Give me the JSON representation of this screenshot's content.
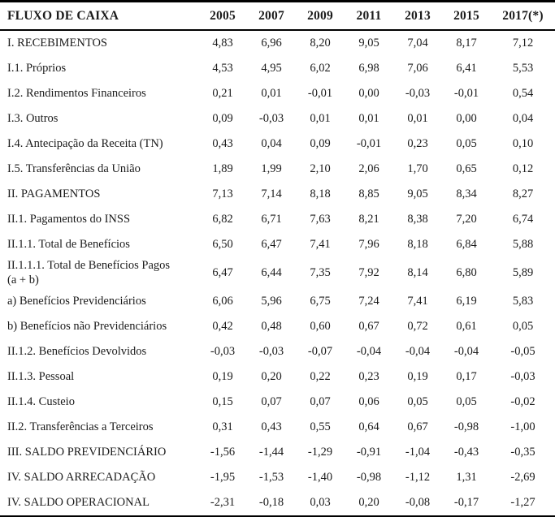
{
  "table": {
    "title_column_header": "FLUXO DE CAIXA",
    "year_headers": [
      "2005",
      "2007",
      "2009",
      "2011",
      "2013",
      "2015",
      "2017(*)"
    ],
    "rows": [
      {
        "label": "I. RECEBIMENTOS",
        "values": [
          "4,83",
          "6,96",
          "8,20",
          "9,05",
          "7,04",
          "8,17",
          "7,12"
        ]
      },
      {
        "label": "I.1. Próprios",
        "values": [
          "4,53",
          "4,95",
          "6,02",
          "6,98",
          "7,06",
          "6,41",
          "5,53"
        ]
      },
      {
        "label": "I.2. Rendimentos Financeiros",
        "values": [
          "0,21",
          "0,01",
          "-0,01",
          "0,00",
          "-0,03",
          "-0,01",
          "0,54"
        ]
      },
      {
        "label": "I.3. Outros",
        "values": [
          "0,09",
          "-0,03",
          "0,01",
          "0,01",
          "0,01",
          "0,00",
          "0,04"
        ]
      },
      {
        "label": "I.4. Antecipação da Receita (TN)",
        "values": [
          "0,43",
          "0,04",
          "0,09",
          "-0,01",
          "0,23",
          "0,05",
          "0,10"
        ]
      },
      {
        "label": "I.5. Transferências da União",
        "values": [
          "1,89",
          "1,99",
          "2,10",
          "2,06",
          "1,70",
          "0,65",
          "0,12"
        ]
      },
      {
        "label": "II. PAGAMENTOS",
        "values": [
          "7,13",
          "7,14",
          "8,18",
          "8,85",
          "9,05",
          "8,34",
          "8,27"
        ]
      },
      {
        "label": "II.1. Pagamentos do INSS",
        "values": [
          "6,82",
          "6,71",
          "7,63",
          "8,21",
          "8,38",
          "7,20",
          "6,74"
        ]
      },
      {
        "label": "II.1.1. Total de Benefícios",
        "values": [
          "6,50",
          "6,47",
          "7,41",
          "7,96",
          "8,18",
          "6,84",
          "5,88"
        ]
      },
      {
        "label": "II.1.1.1. Total de Benefícios Pagos\n(a + b)",
        "values": [
          "6,47",
          "6,44",
          "7,35",
          "7,92",
          "8,14",
          "6,80",
          "5,89"
        ]
      },
      {
        "label": "a) Benefícios Previdenciários",
        "values": [
          "6,06",
          "5,96",
          "6,75",
          "7,24",
          "7,41",
          "6,19",
          "5,83"
        ]
      },
      {
        "label": "b) Benefícios não Previdenciários",
        "values": [
          "0,42",
          "0,48",
          "0,60",
          "0,67",
          "0,72",
          "0,61",
          "0,05"
        ]
      },
      {
        "label": "II.1.2. Benefícios Devolvidos",
        "values": [
          "-0,03",
          "-0,03",
          "-0,07",
          "-0,04",
          "-0,04",
          "-0,04",
          "-0,05"
        ]
      },
      {
        "label": "II.1.3. Pessoal",
        "values": [
          "0,19",
          "0,20",
          "0,22",
          "0,23",
          "0,19",
          "0,17",
          "-0,03"
        ]
      },
      {
        "label": "II.1.4. Custeio",
        "values": [
          "0,15",
          "0,07",
          "0,07",
          "0,06",
          "0,05",
          "0,05",
          "-0,02"
        ]
      },
      {
        "label": "II.2. Transferências a Terceiros",
        "values": [
          "0,31",
          "0,43",
          "0,55",
          "0,64",
          "0,67",
          "-0,98",
          "-1,00"
        ]
      },
      {
        "label": "III. SALDO PREVIDENCIÁRIO",
        "values": [
          "-1,56",
          "-1,44",
          "-1,29",
          "-0,91",
          "-1,04",
          "-0,43",
          "-0,35"
        ]
      },
      {
        "label": "IV. SALDO ARRECADAÇÃO",
        "values": [
          "-1,95",
          "-1,53",
          "-1,40",
          "-0,98",
          "-1,12",
          "1,31",
          "-2,69"
        ]
      },
      {
        "label": "IV. SALDO OPERACIONAL",
        "values": [
          "-2,31",
          "-0,18",
          "0,03",
          "0,20",
          "-0,08",
          "-0,17",
          "-1,27"
        ]
      }
    ],
    "colors": {
      "text": "#1b1b1b",
      "border": "#000000",
      "background": "#ffffff"
    }
  },
  "chart_data": {
    "type": "table",
    "title": "FLUXO DE CAIXA",
    "categories": [
      2005,
      2007,
      2009,
      2011,
      2013,
      2015,
      2017
    ],
    "series": [
      {
        "name": "I. RECEBIMENTOS",
        "values": [
          4.83,
          6.96,
          8.2,
          9.05,
          7.04,
          8.17,
          7.12
        ]
      },
      {
        "name": "I.1. Próprios",
        "values": [
          4.53,
          4.95,
          6.02,
          6.98,
          7.06,
          6.41,
          5.53
        ]
      },
      {
        "name": "I.2. Rendimentos Financeiros",
        "values": [
          0.21,
          0.01,
          -0.01,
          0.0,
          -0.03,
          -0.01,
          0.54
        ]
      },
      {
        "name": "I.3. Outros",
        "values": [
          0.09,
          -0.03,
          0.01,
          0.01,
          0.01,
          0.0,
          0.04
        ]
      },
      {
        "name": "I.4. Antecipação da Receita (TN)",
        "values": [
          0.43,
          0.04,
          0.09,
          -0.01,
          0.23,
          0.05,
          0.1
        ]
      },
      {
        "name": "I.5. Transferências da União",
        "values": [
          1.89,
          1.99,
          2.1,
          2.06,
          1.7,
          0.65,
          0.12
        ]
      },
      {
        "name": "II. PAGAMENTOS",
        "values": [
          7.13,
          7.14,
          8.18,
          8.85,
          9.05,
          8.34,
          8.27
        ]
      },
      {
        "name": "II.1. Pagamentos do INSS",
        "values": [
          6.82,
          6.71,
          7.63,
          8.21,
          8.38,
          7.2,
          6.74
        ]
      },
      {
        "name": "II.1.1. Total de Benefícios",
        "values": [
          6.5,
          6.47,
          7.41,
          7.96,
          8.18,
          6.84,
          5.88
        ]
      },
      {
        "name": "II.1.1.1. Total de Benefícios Pagos (a + b)",
        "values": [
          6.47,
          6.44,
          7.35,
          7.92,
          8.14,
          6.8,
          5.89
        ]
      },
      {
        "name": "a) Benefícios Previdenciários",
        "values": [
          6.06,
          5.96,
          6.75,
          7.24,
          7.41,
          6.19,
          5.83
        ]
      },
      {
        "name": "b) Benefícios não Previdenciários",
        "values": [
          0.42,
          0.48,
          0.6,
          0.67,
          0.72,
          0.61,
          0.05
        ]
      },
      {
        "name": "II.1.2. Benefícios Devolvidos",
        "values": [
          -0.03,
          -0.03,
          -0.07,
          -0.04,
          -0.04,
          -0.04,
          -0.05
        ]
      },
      {
        "name": "II.1.3. Pessoal",
        "values": [
          0.19,
          0.2,
          0.22,
          0.23,
          0.19,
          0.17,
          -0.03
        ]
      },
      {
        "name": "II.1.4. Custeio",
        "values": [
          0.15,
          0.07,
          0.07,
          0.06,
          0.05,
          0.05,
          -0.02
        ]
      },
      {
        "name": "II.2. Transferências a Terceiros",
        "values": [
          0.31,
          0.43,
          0.55,
          0.64,
          0.67,
          -0.98,
          -1.0
        ]
      },
      {
        "name": "III. SALDO PREVIDENCIÁRIO",
        "values": [
          -1.56,
          -1.44,
          -1.29,
          -0.91,
          -1.04,
          -0.43,
          -0.35
        ]
      },
      {
        "name": "IV. SALDO ARRECADAÇÃO",
        "values": [
          -1.95,
          -1.53,
          -1.4,
          -0.98,
          -1.12,
          1.31,
          -2.69
        ]
      },
      {
        "name": "IV. SALDO OPERACIONAL",
        "values": [
          -2.31,
          -0.18,
          0.03,
          0.2,
          -0.08,
          -0.17,
          -1.27
        ]
      }
    ]
  }
}
